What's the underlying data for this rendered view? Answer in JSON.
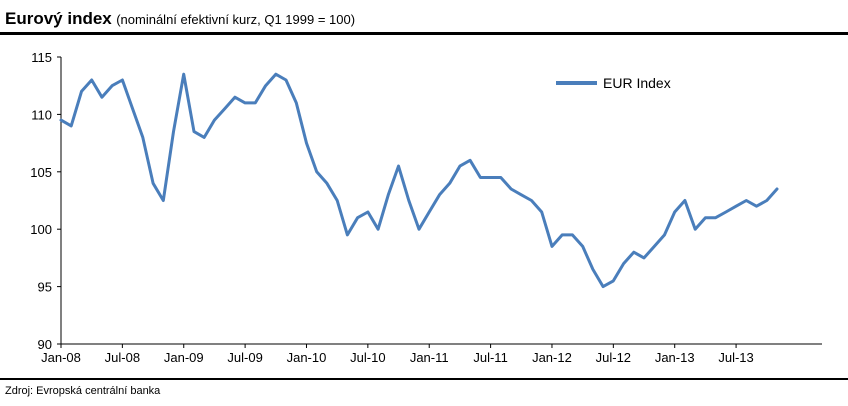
{
  "title": "Eurový index",
  "subtitle": "(nominální efektivní kurz, Q1 1999 = 100)",
  "source": "Zdroj: Evropská centrální banka",
  "colors": {
    "series": "#4a7ebb",
    "axis": "#000000"
  },
  "chart_data": {
    "type": "line",
    "title": "Eurový index",
    "subtitle": "(nominální efektivní kurz, Q1 1999 = 100)",
    "xlabel": "",
    "ylabel": "",
    "ylim": [
      90,
      115
    ],
    "yticks": [
      90,
      95,
      100,
      105,
      110,
      115
    ],
    "xticks": [
      "Jan-08",
      "Jul-08",
      "Jan-09",
      "Jul-09",
      "Jan-10",
      "Jul-10",
      "Jan-11",
      "Jul-11",
      "Jan-12",
      "Jul-12",
      "Jan-13",
      "Jul-13"
    ],
    "grid": false,
    "legend": "top-right",
    "series": [
      {
        "name": "EUR Index",
        "x": [
          "2008-01",
          "2008-02",
          "2008-03",
          "2008-04",
          "2008-05",
          "2008-06",
          "2008-07",
          "2008-08",
          "2008-09",
          "2008-10",
          "2008-11",
          "2008-12",
          "2009-01",
          "2009-02",
          "2009-03",
          "2009-04",
          "2009-05",
          "2009-06",
          "2009-07",
          "2009-08",
          "2009-09",
          "2009-10",
          "2009-11",
          "2009-12",
          "2010-01",
          "2010-02",
          "2010-03",
          "2010-04",
          "2010-05",
          "2010-06",
          "2010-07",
          "2010-08",
          "2010-09",
          "2010-10",
          "2010-11",
          "2010-12",
          "2011-01",
          "2011-02",
          "2011-03",
          "2011-04",
          "2011-05",
          "2011-06",
          "2011-07",
          "2011-08",
          "2011-09",
          "2011-10",
          "2011-11",
          "2011-12",
          "2012-01",
          "2012-02",
          "2012-03",
          "2012-04",
          "2012-05",
          "2012-06",
          "2012-07",
          "2012-08",
          "2012-09",
          "2012-10",
          "2012-11",
          "2012-12",
          "2013-01",
          "2013-02",
          "2013-03",
          "2013-04",
          "2013-05",
          "2013-06",
          "2013-07",
          "2013-08",
          "2013-09",
          "2013-10",
          "2013-11"
        ],
        "values": [
          109.5,
          109.0,
          112.0,
          113.0,
          111.5,
          112.5,
          113.0,
          110.5,
          108.0,
          104.0,
          102.5,
          108.5,
          113.5,
          108.5,
          108.0,
          109.5,
          110.5,
          111.5,
          111.0,
          111.0,
          112.5,
          113.5,
          113.0,
          111.0,
          107.5,
          105.0,
          104.0,
          102.5,
          99.5,
          101.0,
          101.5,
          100.0,
          103.0,
          105.5,
          102.5,
          100.0,
          101.5,
          103.0,
          104.0,
          105.5,
          106.0,
          104.5,
          104.5,
          104.5,
          103.5,
          103.0,
          102.5,
          101.5,
          98.5,
          99.5,
          99.5,
          98.5,
          96.5,
          95.0,
          95.5,
          97.0,
          98.0,
          97.5,
          98.5,
          99.5,
          101.5,
          102.5,
          100.0,
          101.0,
          101.0,
          101.5,
          102.0,
          102.5,
          102.0,
          102.5,
          103.5
        ]
      }
    ]
  }
}
